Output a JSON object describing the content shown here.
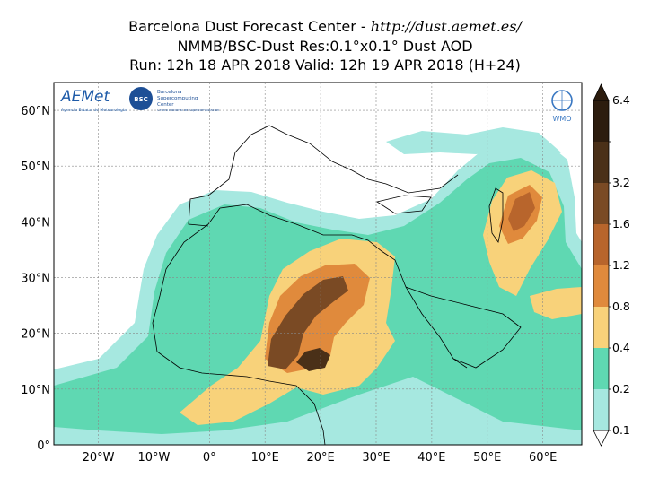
{
  "header": {
    "line1_prefix": "Barcelona Dust Forecast Center - ",
    "line1_url": "http://dust.aemet.es/",
    "line2": "NMMB/BSC-Dust   Res:0.1°x0.1°   Dust AOD",
    "line3": "Run: 12h 18 APR 2018   Valid: 12h 19 APR 2018 (H+24)"
  },
  "logos": {
    "aemet": "AEMet",
    "aemet_sub": "Agencia Estatal de Meteorología",
    "bsc": "BSC",
    "bsc_line1": "Barcelona",
    "bsc_line2": "Supercomputing",
    "bsc_line3": "Center",
    "bsc_sub": "Centro Nacional de Supercomputación",
    "wmo": "WMO"
  },
  "map": {
    "lon_range": [
      -28,
      67
    ],
    "lat_range": [
      0,
      65
    ],
    "lon_ticks": [
      {
        "value": -20,
        "label": "20°W"
      },
      {
        "value": -10,
        "label": "10°W"
      },
      {
        "value": 0,
        "label": "0°"
      },
      {
        "value": 10,
        "label": "10°E"
      },
      {
        "value": 20,
        "label": "20°E"
      },
      {
        "value": 30,
        "label": "30°E"
      },
      {
        "value": 40,
        "label": "40°E"
      },
      {
        "value": 50,
        "label": "50°E"
      },
      {
        "value": 60,
        "label": "60°E"
      }
    ],
    "lat_ticks": [
      {
        "value": 0,
        "label": "0°"
      },
      {
        "value": 10,
        "label": "10°N"
      },
      {
        "value": 20,
        "label": "20°N"
      },
      {
        "value": 30,
        "label": "30°N"
      },
      {
        "value": 40,
        "label": "40°N"
      },
      {
        "value": 50,
        "label": "50°N"
      },
      {
        "value": 60,
        "label": "60°N"
      }
    ]
  },
  "colorbar": {
    "levels": [
      {
        "label": "0.1",
        "color": "#a6e8e0"
      },
      {
        "label": "0.2",
        "color": "#5fd8b2"
      },
      {
        "label": "0.4",
        "color": "#f8d27a"
      },
      {
        "label": "0.8",
        "color": "#e08a3c"
      },
      {
        "label": "1.2",
        "color": "#b8652c"
      },
      {
        "label": "1.6",
        "color": "#7a4a24"
      },
      {
        "label": "3.2",
        "color": "#4a3018"
      },
      {
        "label": "6.4",
        "color": "#2c1c0e"
      }
    ]
  }
}
